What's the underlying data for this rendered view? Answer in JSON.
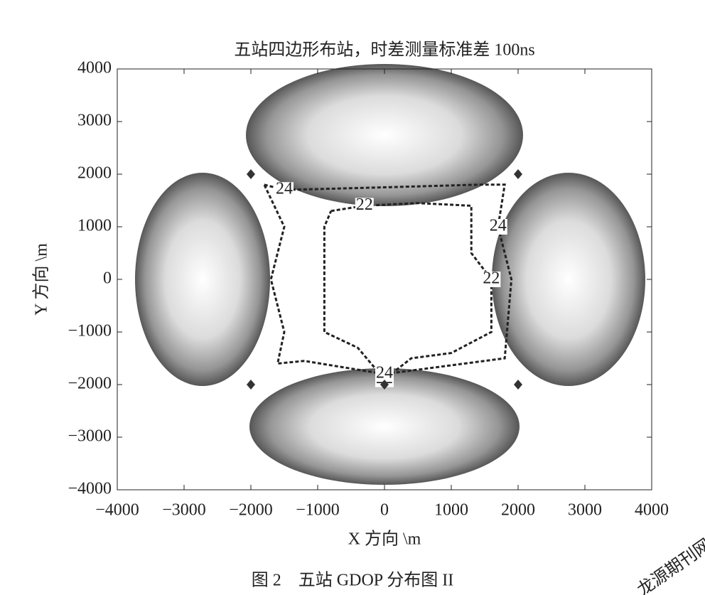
{
  "chart_data": {
    "type": "contour",
    "title": "五站四边形布站，时差测量标准差 100ns",
    "xlabel": "X 方向 \\m",
    "ylabel": "Y 方向 \\m",
    "caption": "图 2　五站 GDOP 分布图 II",
    "watermark": "龙源期刊网",
    "xlim": [
      -4000,
      4000
    ],
    "ylim": [
      -4000,
      4000
    ],
    "xticks": [
      {
        "value": -4000,
        "label": "−4000"
      },
      {
        "value": -3000,
        "label": "−3000"
      },
      {
        "value": -2000,
        "label": "−2000"
      },
      {
        "value": -1000,
        "label": "−1000"
      },
      0,
      1000,
      2000,
      3000,
      4000
    ],
    "yticks": [
      {
        "value": -4000,
        "label": "−4000"
      },
      {
        "value": -3000,
        "label": "−3000"
      },
      {
        "value": -2000,
        "label": "−2000"
      },
      {
        "value": -1000,
        "label": "−1000"
      },
      0,
      1000,
      2000,
      3000,
      4000
    ],
    "contours": [
      {
        "level": 22,
        "color": "#222222",
        "x": [
          -800,
          -300,
          500,
          1300,
          1300,
          1600,
          1600,
          1000,
          400,
          0,
          -400,
          -900,
          -900,
          -900,
          -800
        ],
        "y": [
          1300,
          1400,
          1450,
          1400,
          500,
          0,
          -1000,
          -1400,
          -1500,
          -1900,
          -1300,
          -1000,
          0,
          1000,
          1300
        ]
      },
      {
        "level": 24,
        "color": "#222222",
        "x": [
          -1800,
          -1500,
          0,
          1400,
          1800,
          1700,
          1900,
          1800,
          1200,
          0,
          -1200,
          -1600,
          -1500,
          -1700,
          -1500,
          -1800
        ],
        "y": [
          1800,
          1700,
          1750,
          1800,
          1800,
          1000,
          0,
          -1500,
          -1600,
          -1800,
          -1550,
          -1600,
          -1000,
          0,
          1000,
          1800
        ]
      }
    ],
    "stations": {
      "color": "#333333",
      "x": [
        -2000,
        2000,
        2000,
        -2000,
        0
      ],
      "y": [
        2000,
        2000,
        -2000,
        -2000,
        -2000
      ]
    }
  }
}
